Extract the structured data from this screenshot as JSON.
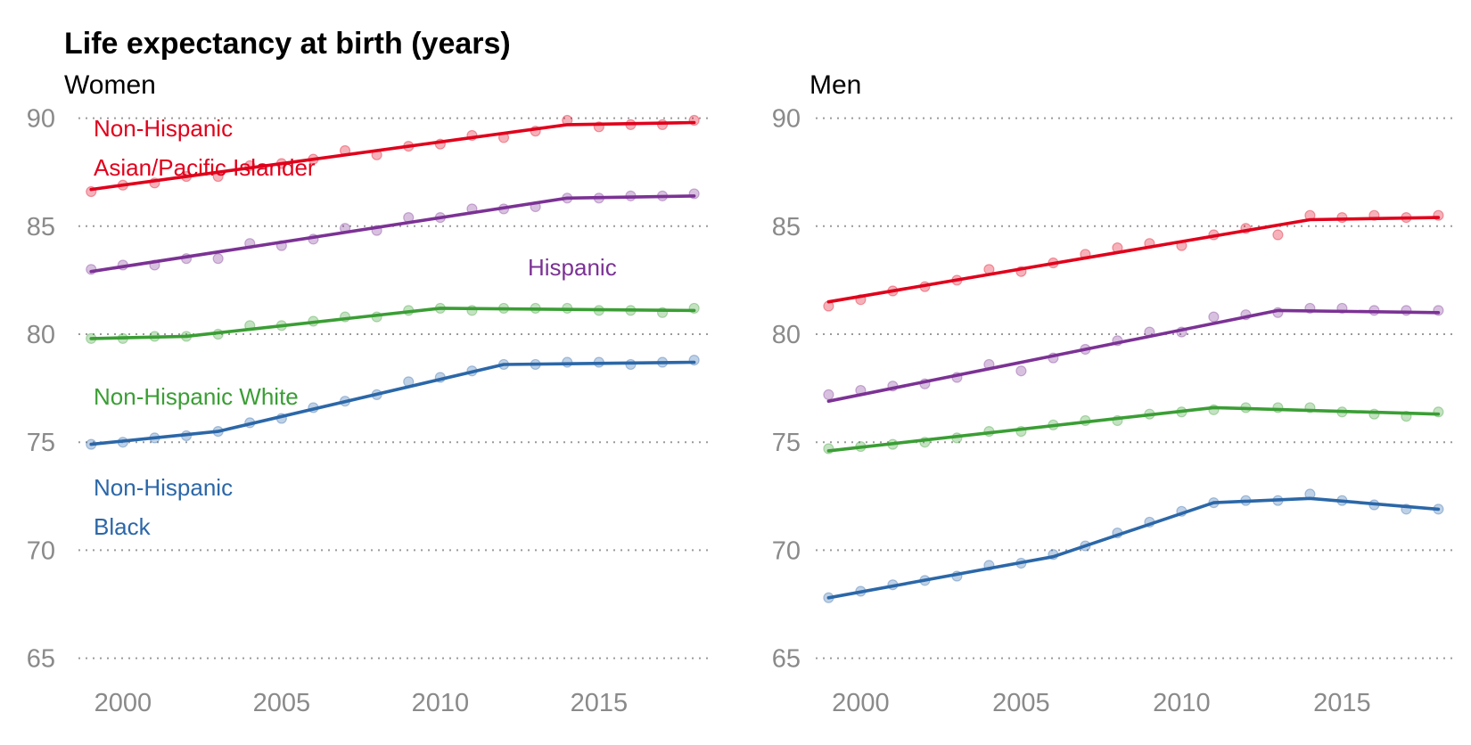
{
  "chart_data": {
    "type": "line",
    "title": "Life expectancy at birth (years)",
    "xlim": [
      1998.6,
      2018.6
    ],
    "ylim": [
      63.5,
      92.5
    ],
    "x_ticks": [
      "2000",
      "2005",
      "2010",
      "2015"
    ],
    "y_ticks": [
      "65",
      "70",
      "75",
      "80",
      "85",
      "90"
    ],
    "grid": "horizontal dotted",
    "colors": {
      "Non-Hispanic Asian/Pacific Islander": "#e0001b",
      "Hispanic": "#7b3294",
      "Non-Hispanic White": "#3a9e34",
      "Non-Hispanic Black": "#2b67a8"
    },
    "panels": [
      {
        "title": "Women",
        "labels": [
          {
            "series": "Non-Hispanic Asian/Pacific Islander",
            "lines": [
              "Non-Hispanic",
              "Asian/Pacific Islander"
            ]
          },
          {
            "series": "Hispanic",
            "lines": [
              "Hispanic"
            ]
          },
          {
            "series": "Non-Hispanic White",
            "lines": [
              "Non-Hispanic White"
            ]
          },
          {
            "series": "Non-Hispanic Black",
            "lines": [
              "Non-Hispanic",
              "Black"
            ]
          }
        ],
        "series": [
          {
            "name": "Non-Hispanic Asian/Pacific Islander",
            "x": [
              1999,
              2000,
              2001,
              2002,
              2003,
              2004,
              2005,
              2006,
              2007,
              2008,
              2009,
              2010,
              2011,
              2012,
              2013,
              2014,
              2015,
              2016,
              2017,
              2018
            ],
            "points": [
              86.6,
              86.9,
              87.0,
              87.3,
              87.3,
              87.8,
              87.9,
              88.1,
              88.5,
              88.3,
              88.7,
              88.8,
              89.2,
              89.1,
              89.4,
              89.9,
              89.6,
              89.7,
              89.7,
              89.9
            ],
            "trend": [
              [
                1999,
                86.7
              ],
              [
                2014,
                89.7
              ],
              [
                2018,
                89.8
              ]
            ]
          },
          {
            "name": "Hispanic",
            "x": [
              1999,
              2000,
              2001,
              2002,
              2003,
              2004,
              2005,
              2006,
              2007,
              2008,
              2009,
              2010,
              2011,
              2012,
              2013,
              2014,
              2015,
              2016,
              2017,
              2018
            ],
            "points": [
              83.0,
              83.2,
              83.2,
              83.5,
              83.5,
              84.2,
              84.1,
              84.4,
              84.9,
              84.8,
              85.4,
              85.4,
              85.8,
              85.8,
              85.9,
              86.3,
              86.3,
              86.4,
              86.4,
              86.5
            ],
            "trend": [
              [
                1999,
                82.9
              ],
              [
                2014,
                86.3
              ],
              [
                2018,
                86.4
              ]
            ]
          },
          {
            "name": "Non-Hispanic White",
            "x": [
              1999,
              2000,
              2001,
              2002,
              2003,
              2004,
              2005,
              2006,
              2007,
              2008,
              2009,
              2010,
              2011,
              2012,
              2013,
              2014,
              2015,
              2016,
              2017,
              2018
            ],
            "points": [
              79.8,
              79.8,
              79.9,
              79.9,
              80.0,
              80.4,
              80.4,
              80.6,
              80.8,
              80.8,
              81.1,
              81.2,
              81.1,
              81.2,
              81.2,
              81.2,
              81.1,
              81.1,
              81.0,
              81.2
            ],
            "trend": [
              [
                1999,
                79.8
              ],
              [
                2002,
                79.9
              ],
              [
                2010,
                81.2
              ],
              [
                2018,
                81.1
              ]
            ]
          },
          {
            "name": "Non-Hispanic Black",
            "x": [
              1999,
              2000,
              2001,
              2002,
              2003,
              2004,
              2005,
              2006,
              2007,
              2008,
              2009,
              2010,
              2011,
              2012,
              2013,
              2014,
              2015,
              2016,
              2017,
              2018
            ],
            "points": [
              74.9,
              75.0,
              75.2,
              75.3,
              75.5,
              75.9,
              76.1,
              76.6,
              76.9,
              77.2,
              77.8,
              78.0,
              78.3,
              78.6,
              78.6,
              78.7,
              78.7,
              78.6,
              78.7,
              78.8
            ],
            "trend": [
              [
                1999,
                74.9
              ],
              [
                2003,
                75.5
              ],
              [
                2012,
                78.6
              ],
              [
                2018,
                78.7
              ]
            ]
          }
        ]
      },
      {
        "title": "Men",
        "labels": [],
        "series": [
          {
            "name": "Non-Hispanic Asian/Pacific Islander",
            "x": [
              1999,
              2000,
              2001,
              2002,
              2003,
              2004,
              2005,
              2006,
              2007,
              2008,
              2009,
              2010,
              2011,
              2012,
              2013,
              2014,
              2015,
              2016,
              2017,
              2018
            ],
            "points": [
              81.3,
              81.6,
              82.0,
              82.2,
              82.5,
              83.0,
              82.9,
              83.3,
              83.7,
              84.0,
              84.2,
              84.1,
              84.6,
              84.9,
              84.6,
              85.5,
              85.4,
              85.5,
              85.4,
              85.5
            ],
            "trend": [
              [
                1999,
                81.5
              ],
              [
                2014,
                85.3
              ],
              [
                2018,
                85.4
              ]
            ]
          },
          {
            "name": "Hispanic",
            "x": [
              1999,
              2000,
              2001,
              2002,
              2003,
              2004,
              2005,
              2006,
              2007,
              2008,
              2009,
              2010,
              2011,
              2012,
              2013,
              2014,
              2015,
              2016,
              2017,
              2018
            ],
            "points": [
              77.2,
              77.4,
              77.6,
              77.7,
              78.0,
              78.6,
              78.3,
              78.9,
              79.3,
              79.7,
              80.1,
              80.1,
              80.8,
              80.9,
              81.0,
              81.2,
              81.2,
              81.1,
              81.1,
              81.1
            ],
            "trend": [
              [
                1999,
                76.9
              ],
              [
                2013,
                81.1
              ],
              [
                2018,
                81.0
              ]
            ]
          },
          {
            "name": "Non-Hispanic White",
            "x": [
              1999,
              2000,
              2001,
              2002,
              2003,
              2004,
              2005,
              2006,
              2007,
              2008,
              2009,
              2010,
              2011,
              2012,
              2013,
              2014,
              2015,
              2016,
              2017,
              2018
            ],
            "points": [
              74.7,
              74.8,
              74.9,
              75.0,
              75.2,
              75.5,
              75.5,
              75.8,
              76.0,
              76.0,
              76.3,
              76.4,
              76.5,
              76.6,
              76.6,
              76.6,
              76.4,
              76.3,
              76.2,
              76.4
            ],
            "trend": [
              [
                1999,
                74.6
              ],
              [
                2011,
                76.6
              ],
              [
                2018,
                76.3
              ]
            ]
          },
          {
            "name": "Non-Hispanic Black",
            "x": [
              1999,
              2000,
              2001,
              2002,
              2003,
              2004,
              2005,
              2006,
              2007,
              2008,
              2009,
              2010,
              2011,
              2012,
              2013,
              2014,
              2015,
              2016,
              2017,
              2018
            ],
            "points": [
              67.8,
              68.1,
              68.4,
              68.6,
              68.8,
              69.3,
              69.4,
              69.8,
              70.2,
              70.8,
              71.3,
              71.8,
              72.2,
              72.3,
              72.3,
              72.6,
              72.3,
              72.1,
              71.9,
              71.9
            ],
            "trend": [
              [
                1999,
                67.8
              ],
              [
                2006,
                69.7
              ],
              [
                2011,
                72.2
              ],
              [
                2014,
                72.4
              ],
              [
                2018,
                71.9
              ]
            ]
          }
        ]
      }
    ]
  }
}
